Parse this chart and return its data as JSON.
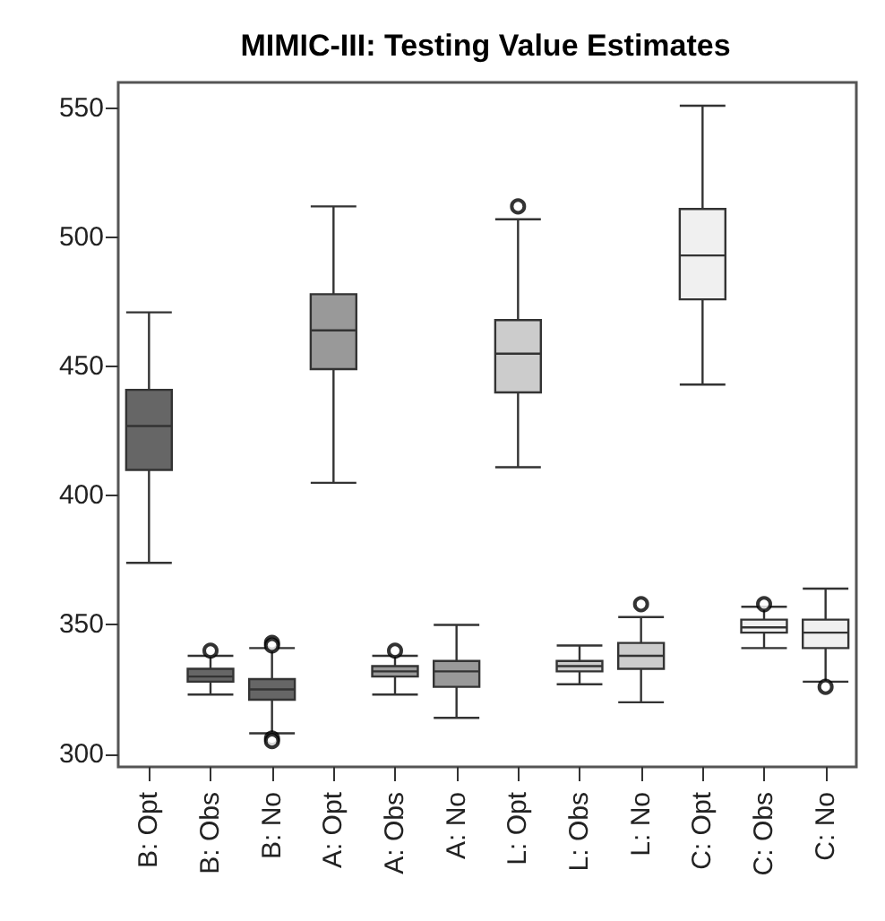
{
  "chart_data": {
    "type": "box",
    "title": "MIMIC-III: Testing Value Estimates",
    "categories": [
      "B: Opt",
      "B: Obs",
      "B: No",
      "A: Opt",
      "A: Obs",
      "A: No",
      "L: Opt",
      "L: Obs",
      "L: No",
      "C: Opt",
      "C: Obs",
      "C: No"
    ],
    "colors": [
      "#666666",
      "#666666",
      "#666666",
      "#999999",
      "#999999",
      "#999999",
      "#cccccc",
      "#cccccc",
      "#cccccc",
      "#f0f0f0",
      "#f0f0f0",
      "#f0f0f0"
    ],
    "boxes": [
      {
        "low": 374,
        "q1": 410,
        "median": 427,
        "q3": 441,
        "high": 471
      },
      {
        "low": 323,
        "q1": 328,
        "median": 330,
        "q3": 333,
        "high": 338,
        "outliers": [
          340
        ]
      },
      {
        "low": 308,
        "q1": 321,
        "median": 325,
        "q3": 329,
        "high": 341,
        "outliers": [
          343,
          342,
          306,
          305
        ]
      },
      {
        "low": 405,
        "q1": 449,
        "median": 464,
        "q3": 478,
        "high": 512
      },
      {
        "low": 323,
        "q1": 330,
        "median": 332,
        "q3": 334,
        "high": 338,
        "outliers": [
          340
        ]
      },
      {
        "low": 314,
        "q1": 326,
        "median": 332,
        "q3": 336,
        "high": 350
      },
      {
        "low": 411,
        "q1": 440,
        "median": 455,
        "q3": 468,
        "high": 507,
        "outliers": [
          512
        ]
      },
      {
        "low": 327,
        "q1": 332,
        "median": 334,
        "q3": 336,
        "high": 342
      },
      {
        "low": 320,
        "q1": 333,
        "median": 338,
        "q3": 343,
        "high": 353,
        "outliers": [
          358
        ]
      },
      {
        "low": 443,
        "q1": 476,
        "median": 493,
        "q3": 511,
        "high": 551
      },
      {
        "low": 341,
        "q1": 347,
        "median": 349,
        "q3": 352,
        "high": 357,
        "outliers": [
          358
        ]
      },
      {
        "low": 328,
        "q1": 341,
        "median": 347,
        "q3": 352,
        "high": 364,
        "outliers": [
          326
        ]
      }
    ],
    "ylim": [
      295,
      560
    ],
    "yticks": [
      300,
      350,
      400,
      450,
      500,
      550
    ],
    "marker": "circle"
  }
}
